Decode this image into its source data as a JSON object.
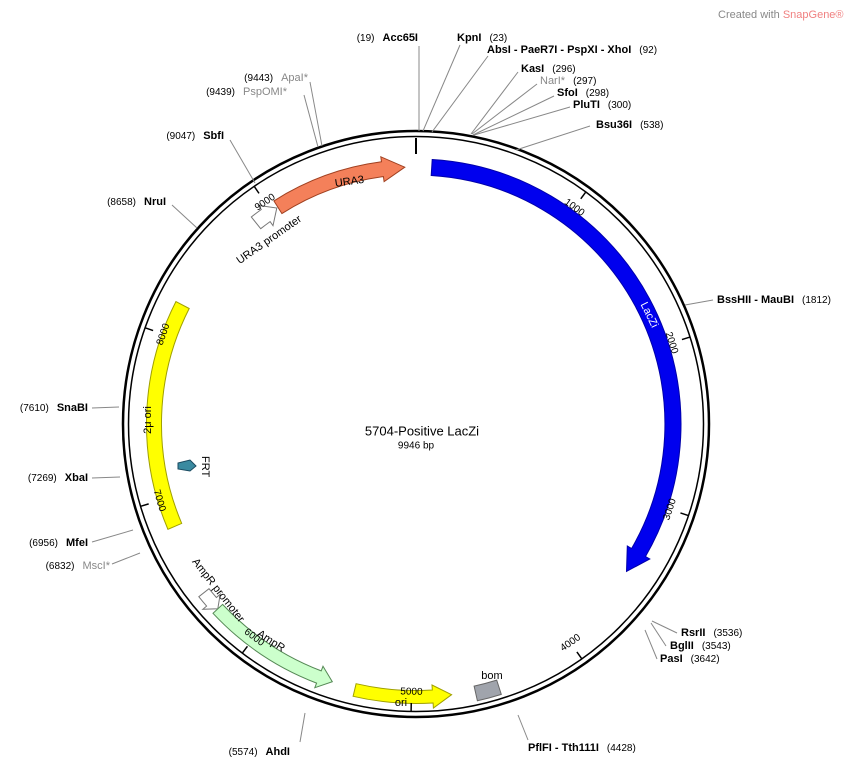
{
  "watermark": {
    "prefix": "Created with",
    "brand": "SnapGene®"
  },
  "plasmid": {
    "name": "5704-Positive LacZi",
    "size": "9946 bp"
  },
  "sites": [
    {
      "name": "Acc65I",
      "position": "(19)"
    },
    {
      "name": "KpnI",
      "position": "(23)"
    },
    {
      "name": "AbsI - PaeR7I - PspXI - XhoI",
      "position": "(92)"
    },
    {
      "name": "KasI",
      "position": "(296)"
    },
    {
      "name": "NarI*",
      "position": "(297)"
    },
    {
      "name": "SfoI",
      "position": "(298)"
    },
    {
      "name": "PluTI",
      "position": "(300)"
    },
    {
      "name": "Bsu36I",
      "position": "(538)"
    },
    {
      "name": "BssHII - MauBI",
      "position": "(1812)"
    },
    {
      "name": "RsrII",
      "position": "(3536)"
    },
    {
      "name": "BglII",
      "position": "(3543)"
    },
    {
      "name": "PasI",
      "position": "(3642)"
    },
    {
      "name": "PflFI - Tth111I",
      "position": "(4428)"
    },
    {
      "name": "AhdI",
      "position": "(5574)"
    },
    {
      "name": "MscI*",
      "position": "(6832)"
    },
    {
      "name": "MfeI",
      "position": "(6956)"
    },
    {
      "name": "XbaI",
      "position": "(7269)"
    },
    {
      "name": "SnaBI",
      "position": "(7610)"
    },
    {
      "name": "NruI",
      "position": "(8658)"
    },
    {
      "name": "SbfI",
      "position": "(9047)"
    },
    {
      "name": "PspOMI*",
      "position": "(9439)"
    },
    {
      "name": "ApaI*",
      "position": "(9443)"
    }
  ],
  "features": [
    "URA3",
    "URA3 promoter",
    "LacZi",
    "2μ ori",
    "FRT",
    "AmpR promoter",
    "AmpR",
    "ori",
    "bom"
  ],
  "ruler": [
    "1000",
    "2000",
    "3000",
    "4000",
    "5000",
    "6000",
    "7000",
    "8000",
    "9000"
  ]
}
